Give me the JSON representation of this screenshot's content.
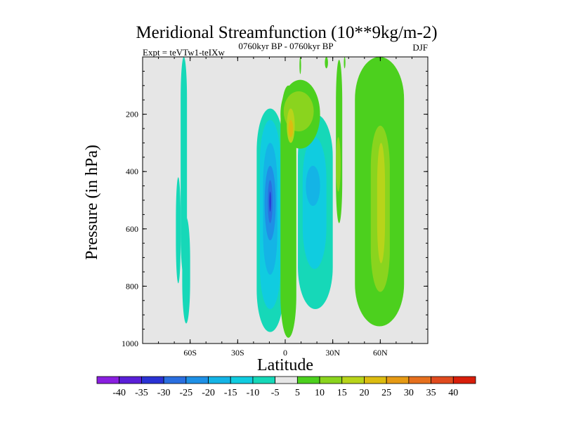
{
  "chart_data": {
    "type": "heatmap",
    "title": "Meridional Streamfunction (10**9kg/m-2)",
    "subtitle_left": "Expt = teVTw1-teIXw",
    "subtitle_center": "0760kyr BP - 0760kyr BP",
    "subtitle_right": "DJF",
    "xlabel": "Latitude",
    "ylabel": "Pressure (in hPa)",
    "xlim": [
      -90,
      90
    ],
    "ylim": [
      1000,
      0
    ],
    "x_ticks": [
      {
        "value": -60,
        "label": "60S"
      },
      {
        "value": -30,
        "label": "30S"
      },
      {
        "value": 0,
        "label": "0"
      },
      {
        "value": 30,
        "label": "30N"
      },
      {
        "value": 60,
        "label": "60N"
      }
    ],
    "y_ticks": [
      {
        "value": 200,
        "label": "200"
      },
      {
        "value": 400,
        "label": "400"
      },
      {
        "value": 600,
        "label": "600"
      },
      {
        "value": 800,
        "label": "800"
      },
      {
        "value": 1000,
        "label": "1000"
      }
    ],
    "background_color": "#e6e6e6",
    "colorbar": {
      "labels": [
        "-40",
        "-35",
        "-30",
        "-25",
        "-20",
        "-15",
        "-10",
        "-5",
        "5",
        "10",
        "15",
        "20",
        "25",
        "30",
        "35",
        "40"
      ],
      "colors": [
        "#8a1fe0",
        "#5a1fd8",
        "#2a32d4",
        "#2a6fe0",
        "#1e90e6",
        "#14b4e6",
        "#10cce0",
        "#16d8b8",
        "#e6e6e6",
        "#4cd01e",
        "#8ad41e",
        "#b8d41a",
        "#dcbc10",
        "#e69a14",
        "#e6701e",
        "#e04a1e",
        "#d81e0a"
      ]
    },
    "regions": [
      {
        "name": "sh-high-lat-cell-upper",
        "value": -5,
        "level": "-5",
        "lat": [
          -66,
          -62
        ],
        "p": [
          0,
          760
        ]
      },
      {
        "name": "sh-high-lat-cell-lower",
        "value": -5,
        "level": "-5",
        "lat": [
          -65,
          -60
        ],
        "p": [
          560,
          930
        ]
      },
      {
        "name": "sh-high-lat-cell-thin",
        "value": -5,
        "level": "-5",
        "lat": [
          -69,
          -66
        ],
        "p": [
          420,
          790
        ]
      },
      {
        "name": "sh-hadley-outer",
        "value": -10,
        "level": "-5",
        "lat": [
          -18,
          -1
        ],
        "p": [
          180,
          960
        ]
      },
      {
        "name": "sh-hadley-10",
        "value": -10,
        "level": "-10",
        "lat": [
          -16,
          -3
        ],
        "p": [
          220,
          880
        ]
      },
      {
        "name": "sh-hadley-15",
        "value": -15,
        "level": "-15",
        "lat": [
          -14,
          -5
        ],
        "p": [
          300,
          760
        ]
      },
      {
        "name": "sh-hadley-20",
        "value": -20,
        "level": "-20",
        "lat": [
          -13,
          -6
        ],
        "p": [
          380,
          640
        ]
      },
      {
        "name": "sh-hadley-25",
        "value": -25,
        "level": "-25",
        "lat": [
          -11,
          -8
        ],
        "p": [
          430,
          580
        ]
      },
      {
        "name": "sh-hadley-core",
        "value": -30,
        "level": "-30",
        "lat": [
          -10,
          -9
        ],
        "p": [
          470,
          540
        ]
      },
      {
        "name": "nh-subtropical-neg-outer",
        "value": -10,
        "level": "-5",
        "lat": [
          8,
          30
        ],
        "p": [
          200,
          880
        ]
      },
      {
        "name": "nh-subtropical-neg-10",
        "value": -10,
        "level": "-10",
        "lat": [
          11,
          26
        ],
        "p": [
          280,
          740
        ]
      },
      {
        "name": "nh-subtropical-neg-15",
        "value": -15,
        "level": "-15",
        "lat": [
          13,
          22
        ],
        "p": [
          380,
          520
        ]
      },
      {
        "name": "equatorial-pos-tongue",
        "value": 10,
        "level": "5",
        "lat": [
          -3,
          7
        ],
        "p": [
          100,
          980
        ]
      },
      {
        "name": "equatorial-pos-upper",
        "value": 10,
        "level": "5",
        "lat": [
          -3,
          22
        ],
        "p": [
          80,
          320
        ]
      },
      {
        "name": "equatorial-pos-10",
        "value": 10,
        "level": "10",
        "lat": [
          -1,
          18
        ],
        "p": [
          120,
          260
        ]
      },
      {
        "name": "equatorial-pos-15",
        "value": 15,
        "level": "15",
        "lat": [
          1,
          6
        ],
        "p": [
          180,
          300
        ]
      },
      {
        "name": "equatorial-pos-20",
        "value": 20,
        "level": "20",
        "lat": [
          2,
          5
        ],
        "p": [
          220,
          280
        ]
      },
      {
        "name": "nh-thin-pos-band",
        "value": 5,
        "level": "5",
        "lat": [
          32,
          36
        ],
        "p": [
          10,
          580
        ]
      },
      {
        "name": "nh-thin-pos-inner",
        "value": 10,
        "level": "10",
        "lat": [
          32,
          35
        ],
        "p": [
          280,
          470
        ]
      },
      {
        "name": "nh-ferrel-pos-outer",
        "value": 10,
        "level": "5",
        "lat": [
          44,
          75
        ],
        "p": [
          0,
          940
        ]
      },
      {
        "name": "nh-ferrel-pos-10",
        "value": 10,
        "level": "10",
        "lat": [
          54,
          66
        ],
        "p": [
          240,
          820
        ]
      },
      {
        "name": "nh-ferrel-pos-15",
        "value": 15,
        "level": "15",
        "lat": [
          58,
          63
        ],
        "p": [
          300,
          720
        ]
      },
      {
        "name": "top-pos-sliver-1",
        "value": 5,
        "level": "5",
        "lat": [
          9,
          10
        ],
        "p": [
          0,
          60
        ]
      },
      {
        "name": "top-pos-sliver-2",
        "value": 5,
        "level": "5",
        "lat": [
          25,
          27
        ],
        "p": [
          0,
          40
        ]
      },
      {
        "name": "top-pos-sliver-3",
        "value": 5,
        "level": "5",
        "lat": [
          37,
          38
        ],
        "p": [
          0,
          40
        ]
      }
    ]
  }
}
